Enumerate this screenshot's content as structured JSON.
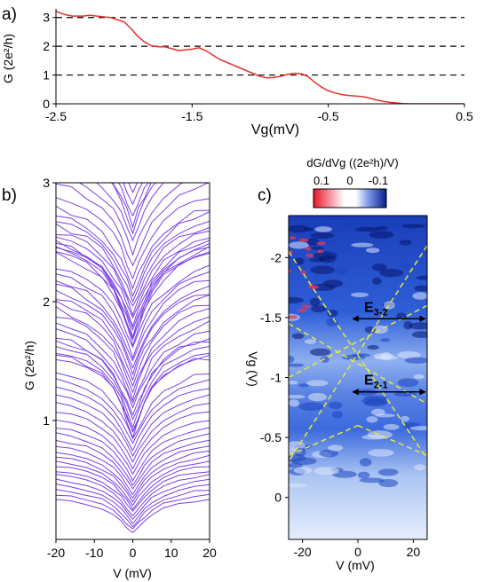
{
  "panels": {
    "a": {
      "label": "a)"
    },
    "b": {
      "label": "b)"
    },
    "c": {
      "label": "c)"
    }
  },
  "chart_data": [
    {
      "panel": "a",
      "type": "line",
      "xlabel": "Vg(mV)",
      "ylabel": "G (2e²/h)",
      "xlim": [
        -2.5,
        0.5
      ],
      "ylim": [
        0,
        3.3
      ],
      "xticks": [
        -2.5,
        -1.5,
        -0.5,
        0.5
      ],
      "yticks": [
        0,
        1,
        2,
        3
      ],
      "reference_lines": [
        1,
        2,
        3
      ],
      "reference_line_style": "dashed",
      "line_color": "#e8302a",
      "series": [
        {
          "x": [
            -2.5,
            -2.45,
            -2.38,
            -2.3,
            -2.25,
            -2.2,
            -2.1,
            -2.0,
            -1.95,
            -1.9,
            -1.85,
            -1.8,
            -1.75,
            -1.7,
            -1.6,
            -1.5,
            -1.45,
            -1.4,
            -1.35,
            -1.3,
            -1.25,
            -1.2,
            -1.15,
            -1.1,
            -1.05,
            -1.0,
            -0.95,
            -0.9,
            -0.85,
            -0.8,
            -0.75,
            -0.7,
            -0.65,
            -0.6,
            -0.55,
            -0.5,
            -0.45,
            -0.4,
            -0.35,
            -0.3,
            -0.25,
            -0.2,
            -0.15,
            -0.1,
            -0.05,
            0.0,
            0.05,
            0.1,
            0.15,
            0.2,
            0.3,
            0.4,
            0.5
          ],
          "y": [
            3.22,
            3.12,
            3.05,
            3.05,
            3.08,
            3.05,
            3.0,
            2.85,
            2.62,
            2.35,
            2.15,
            2.02,
            1.98,
            1.98,
            1.85,
            1.9,
            1.95,
            1.85,
            1.7,
            1.55,
            1.45,
            1.35,
            1.25,
            1.15,
            1.05,
            0.95,
            0.9,
            0.92,
            0.95,
            1.02,
            1.06,
            1.05,
            0.95,
            0.75,
            0.58,
            0.45,
            0.38,
            0.32,
            0.29,
            0.27,
            0.25,
            0.2,
            0.14,
            0.09,
            0.05,
            0.03,
            0.01,
            0.0,
            0.0,
            0.0,
            0.0,
            0.0,
            0.0
          ]
        }
      ]
    },
    {
      "panel": "b",
      "type": "line",
      "xlabel": "V (mV)",
      "ylabel": "G (2e²/h)",
      "xlim": [
        -20,
        20
      ],
      "ylim": [
        0,
        3
      ],
      "xticks": [
        -20,
        -10,
        0,
        10,
        20
      ],
      "yticks": [
        1,
        2,
        3
      ],
      "line_color": "#7b3fe4",
      "x": [
        -20,
        -16,
        -12,
        -8,
        -5,
        -3,
        -1.5,
        0,
        1.5,
        3,
        5,
        8,
        12,
        16,
        20
      ],
      "series_rule": "G(V) = base + rise·(1−exp(−|V|/8)) − depth·exp(−(V/3.5)²) + noise; base = zero-bias conductance of each trace",
      "bases": [
        0.05,
        0.08,
        0.11,
        0.14,
        0.17,
        0.2,
        0.23,
        0.26,
        0.29,
        0.32,
        0.35,
        0.38,
        0.42,
        0.46,
        0.5,
        0.55,
        0.6,
        0.65,
        0.7,
        0.75,
        0.8,
        0.85,
        0.88,
        0.9,
        0.92,
        0.95,
        1.0,
        1.05,
        1.1,
        1.15,
        1.2,
        1.25,
        1.3,
        1.35,
        1.4,
        1.45,
        1.5,
        1.55,
        1.6,
        1.65,
        1.68,
        1.7,
        1.72,
        1.75,
        1.8,
        1.85,
        1.9,
        1.95,
        2.0,
        2.05,
        2.1,
        2.2,
        2.3,
        2.4,
        2.5,
        2.6,
        2.65,
        2.7,
        2.8,
        2.9
      ]
    },
    {
      "panel": "c",
      "type": "heatmap",
      "xlabel": "V (mV)",
      "ylabel": "Vg (V)",
      "xlim": [
        -25,
        25
      ],
      "ylim": [
        0.35,
        -2.35
      ],
      "xticks": [
        -20,
        0,
        20
      ],
      "yticks": [
        -2,
        -1.5,
        -1,
        -0.5,
        0
      ],
      "colorbar": {
        "title": "dG/dVg ((2e²h)/V)",
        "ticks": [
          0.1,
          0,
          -0.1
        ],
        "colors": [
          "#e8142a",
          "#ffffff",
          "#1636c8"
        ]
      },
      "annotations": [
        {
          "text": "E",
          "sub": "3-2",
          "x_range": [
            0,
            25
          ],
          "y": -1.49
        },
        {
          "text": "E",
          "sub": "2-1",
          "x_range": [
            0,
            25
          ],
          "y": -0.88
        }
      ],
      "diamond_lines": [
        {
          "from": [
            -25,
            -2.05
          ],
          "to": [
            25,
            -0.32
          ]
        },
        {
          "from": [
            25,
            -2.1
          ],
          "to": [
            -25,
            -0.3
          ]
        },
        {
          "from": [
            -25,
            -1.0
          ],
          "to": [
            25,
            -1.6
          ]
        },
        {
          "from": [
            -25,
            -1.45
          ],
          "to": [
            25,
            -0.78
          ]
        },
        {
          "from": [
            -25,
            -0.35
          ],
          "to": [
            0,
            -0.6
          ]
        },
        {
          "from": [
            0,
            -0.6
          ],
          "to": [
            25,
            -0.35
          ]
        }
      ],
      "diamond_line_color": "#e8e83a"
    }
  ]
}
